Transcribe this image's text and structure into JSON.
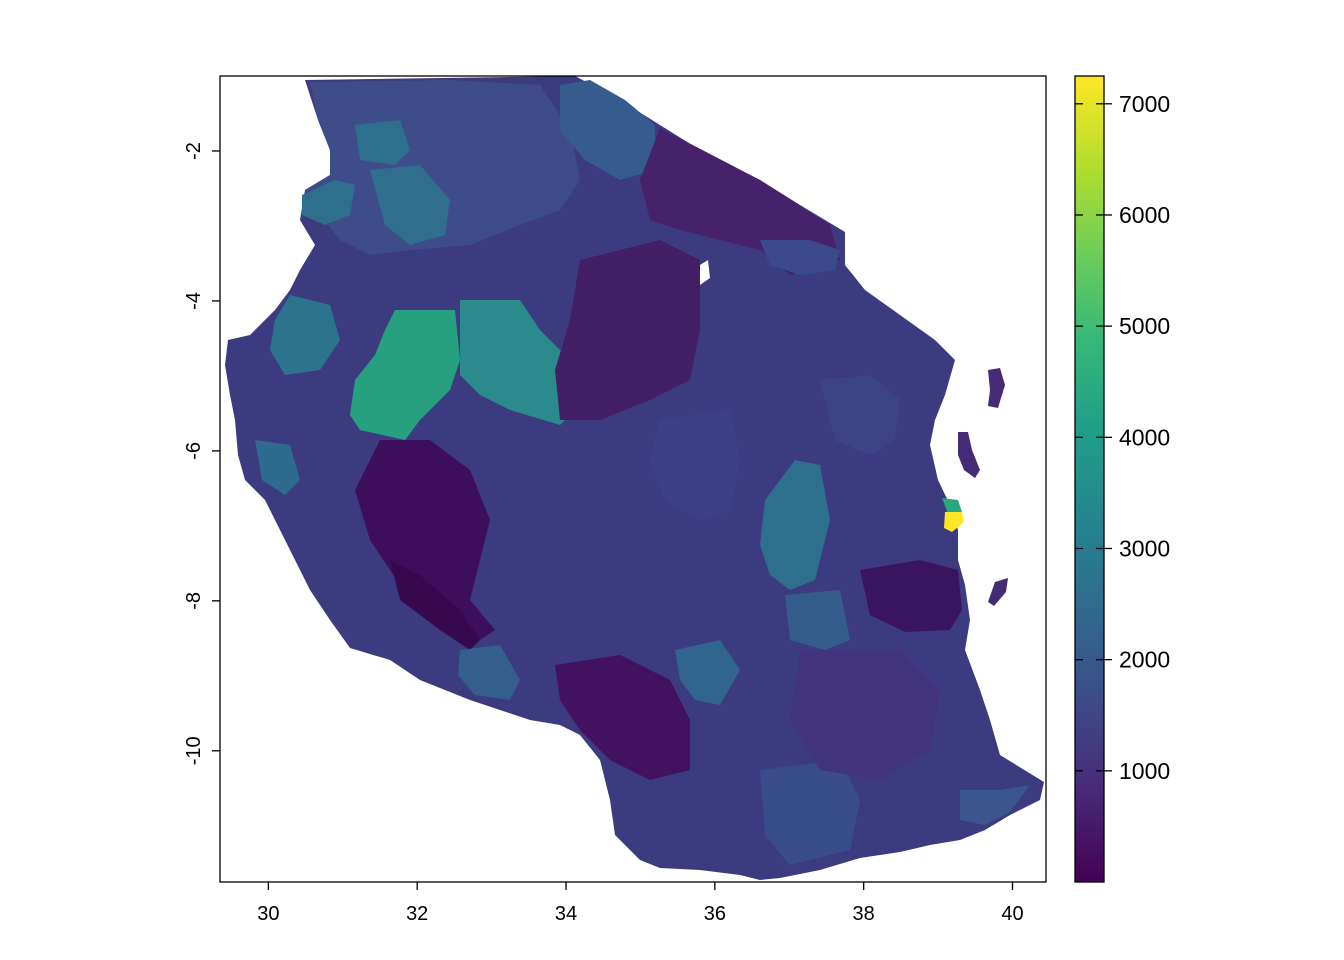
{
  "chart_data": {
    "type": "heatmap",
    "subject": "Raster map of Tanzania with district-level values",
    "x_axis": {
      "ticks": [
        30,
        32,
        34,
        36,
        38,
        40
      ],
      "range": [
        29.35,
        40.45
      ]
    },
    "y_axis": {
      "ticks": [
        -2,
        -4,
        -6,
        -8,
        -10
      ],
      "range": [
        -11.75,
        -1.0
      ]
    },
    "colorbar": {
      "ticks": [
        1000,
        2000,
        3000,
        4000,
        5000,
        6000,
        7000
      ],
      "range": [
        0,
        7250
      ],
      "palette": "viridis",
      "colors": [
        "#440154",
        "#482878",
        "#3E4A89",
        "#31688E",
        "#26828E",
        "#1F9E89",
        "#35B779",
        "#6DCD59",
        "#B4DE2C",
        "#FDE725"
      ]
    },
    "notable_regions": [
      {
        "approx_lon": 31.7,
        "approx_lat": -5.0,
        "approx_value": 4700
      },
      {
        "approx_lon": 33.0,
        "approx_lat": -5.2,
        "approx_value": 3500
      },
      {
        "approx_lon": 31.6,
        "approx_lat": -2.8,
        "approx_value": 3200
      },
      {
        "approx_lon": 37.1,
        "approx_lat": -7.3,
        "approx_value": 3000
      },
      {
        "approx_lon": 39.2,
        "approx_lat": -6.85,
        "approx_value": 7200
      },
      {
        "approx_lon": 39.2,
        "approx_lat": -6.7,
        "approx_value": 4500
      },
      {
        "approx_lon": 32.5,
        "approx_lat": -7.2,
        "approx_value": 200
      },
      {
        "approx_lon": 36.6,
        "approx_lat": -3.2,
        "approx_value": 600
      }
    ]
  }
}
